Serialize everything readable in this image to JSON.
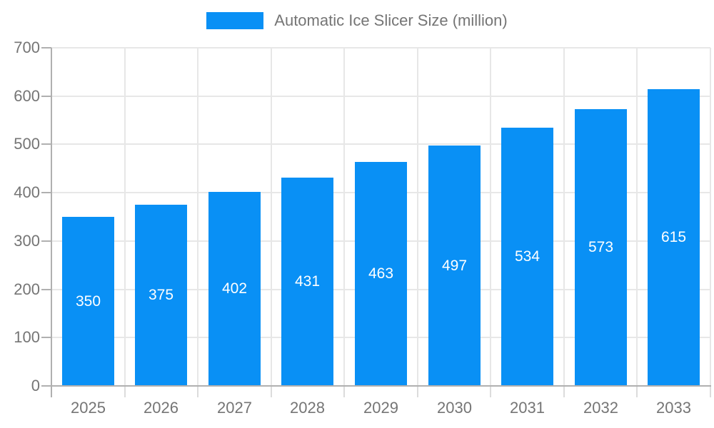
{
  "legend": {
    "label": "Automatic Ice Slicer Size (million)"
  },
  "chart_data": {
    "type": "bar",
    "title": "",
    "categories": [
      "2025",
      "2026",
      "2027",
      "2028",
      "2029",
      "2030",
      "2031",
      "2032",
      "2033"
    ],
    "series": [
      {
        "name": "Automatic Ice Slicer Size (million)",
        "values": [
          350,
          375,
          402,
          431,
          463,
          497,
          534,
          573,
          615
        ]
      }
    ],
    "ylim": [
      0,
      700
    ],
    "yticks": [
      0,
      100,
      200,
      300,
      400,
      500,
      600,
      700
    ],
    "grid": true,
    "legend_position": "top",
    "colors": {
      "bar": "#0990f5",
      "bar_value_text": "#ffffff",
      "axis_text": "#757575",
      "grid_line": "#e7e7e7",
      "axis_line": "#b0b0b0",
      "x_tick": "#dcdcdc"
    }
  }
}
